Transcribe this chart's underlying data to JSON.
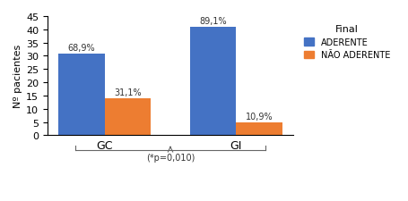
{
  "groups": [
    "GC",
    "GI"
  ],
  "adherent_values": [
    31,
    41
  ],
  "non_adherent_values": [
    14,
    5
  ],
  "adherent_pcts": [
    "68,9%",
    "89,1%"
  ],
  "non_adherent_pcts": [
    "31,1%",
    "10,9%"
  ],
  "bar_color_blue": "#4472C4",
  "bar_color_orange": "#ED7D31",
  "ylim": [
    0,
    45
  ],
  "yticks": [
    0,
    5,
    10,
    15,
    20,
    25,
    30,
    35,
    40,
    45
  ],
  "ylabel": "Nº pacientes",
  "legend_title": "Final",
  "legend_label_1": "ADERENTE",
  "legend_label_2": "NÃO ADERENTE",
  "annotation_text": "(*p=0,010)",
  "bar_width": 0.35,
  "background_color": "#ffffff"
}
